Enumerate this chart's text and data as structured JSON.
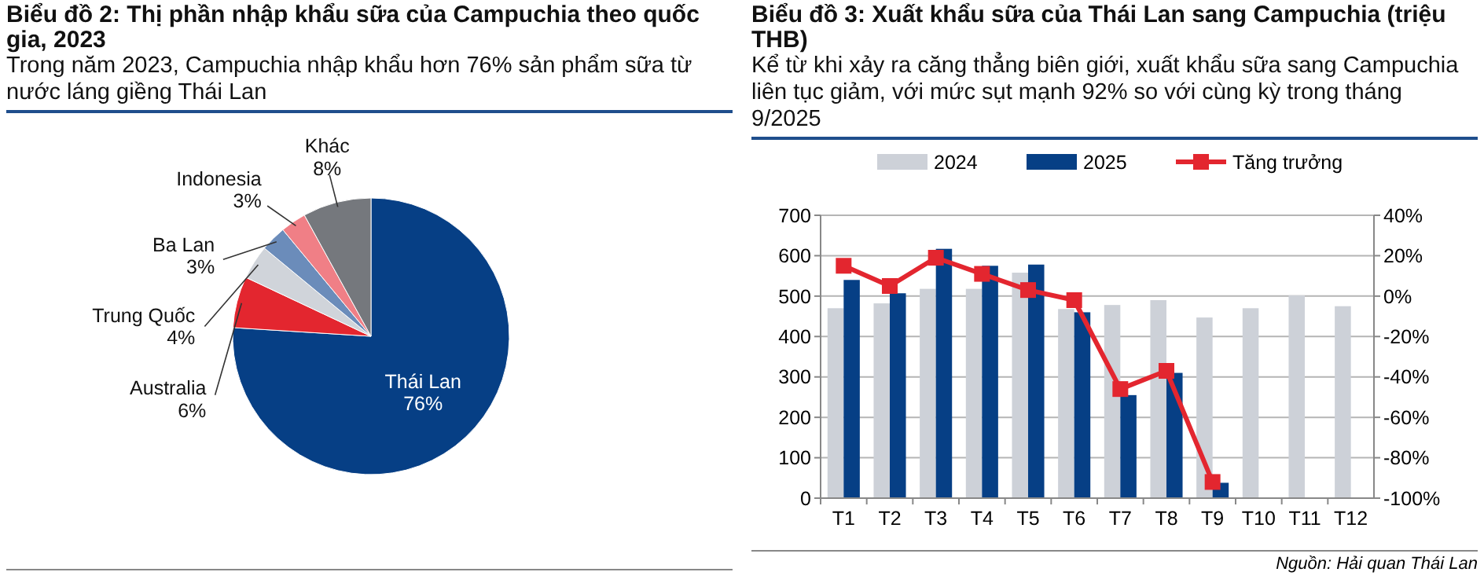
{
  "chart_data": [
    {
      "type": "pie",
      "title": "Biểu đồ 2: Thị phần nhập khẩu sữa của Campuchia theo quốc gia, 2023",
      "subtitle": "Trong năm 2023, Campuchia nhập khẩu hơn 76% sản phẩm sữa từ nước láng giềng Thái Lan",
      "categories": [
        "Thái Lan",
        "Australia",
        "Trung Quốc",
        "Ba Lan",
        "Indonesia",
        "Khác"
      ],
      "values": [
        76,
        6,
        4,
        3,
        3,
        8
      ],
      "value_labels": [
        "76%",
        "6%",
        "4%",
        "3%",
        "3%",
        "8%"
      ],
      "colors": [
        "#063f85",
        "#e3262f",
        "#d0d4da",
        "#6b8cba",
        "#f07f86",
        "#75787d"
      ]
    },
    {
      "type": "bar",
      "title": "Biểu đồ 3: Xuất khẩu sữa của Thái Lan sang Campuchia (triệu THB)",
      "subtitle": "Kể từ khi xảy ra căng thẳng biên giới, xuất khẩu sữa sang Campuchia liên tục giảm, với mức sụt mạnh 92% so với cùng kỳ trong tháng 9/2025",
      "categories": [
        "T1",
        "T2",
        "T3",
        "T4",
        "T5",
        "T6",
        "T7",
        "T8",
        "T9",
        "T10",
        "T11",
        "T12"
      ],
      "series": [
        {
          "name": "2024",
          "color": "#cdd1d8",
          "values": [
            470,
            482,
            518,
            518,
            558,
            468,
            478,
            490,
            447,
            470,
            502,
            475
          ]
        },
        {
          "name": "2025",
          "color": "#063f85",
          "values": [
            540,
            507,
            617,
            575,
            578,
            460,
            255,
            310,
            38,
            null,
            null,
            null
          ]
        },
        {
          "name": "Tăng trưởng",
          "type": "line",
          "axis": "y2",
          "color": "#e3262f",
          "marker": "square",
          "values": [
            15,
            5,
            19,
            11,
            3,
            -2,
            -46,
            -37,
            -92,
            null,
            null,
            null
          ]
        }
      ],
      "ylim": [
        0,
        700
      ],
      "yticks": [
        0,
        100,
        200,
        300,
        400,
        500,
        600,
        700
      ],
      "y2lim": [
        -100,
        40
      ],
      "y2ticks": [
        {
          "value": -100,
          "label": "-100%"
        },
        {
          "value": -80,
          "label": "-80%"
        },
        {
          "value": -60,
          "label": "-60%"
        },
        {
          "value": -40,
          "label": "-40%"
        },
        {
          "value": -20,
          "label": "-20%"
        },
        {
          "value": 0,
          "label": "0%"
        },
        {
          "value": 20,
          "label": "20%"
        },
        {
          "value": 40,
          "label": "40%"
        }
      ],
      "grid": "y",
      "legend": "top",
      "annotations": [
        "Nguồn: Hải quan Thái Lan"
      ]
    }
  ]
}
